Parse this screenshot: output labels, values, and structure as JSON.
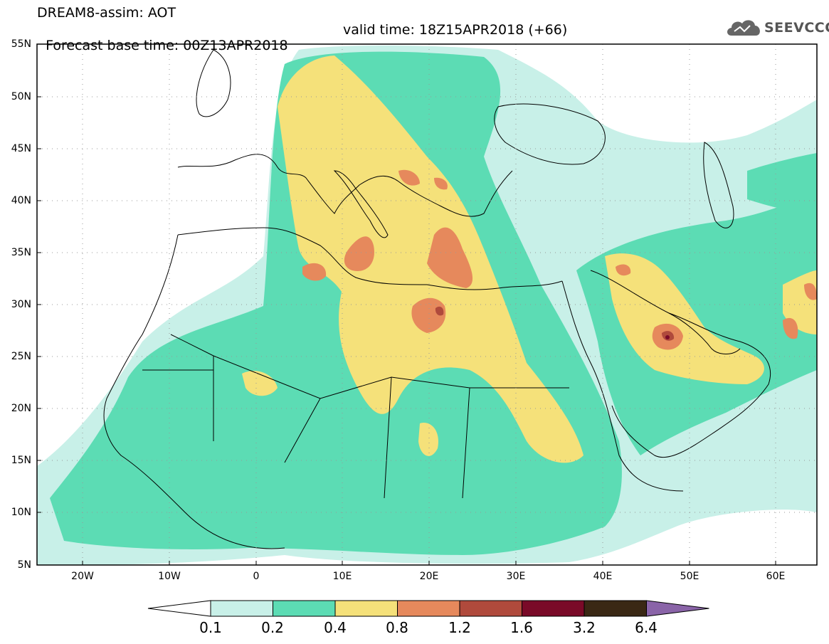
{
  "title": {
    "line1": "DREAM8-assim: AOT",
    "base_time": "Forecast base time: 00Z13APR2018",
    "valid_time": "valid time: 18Z15APR2018 (+66)"
  },
  "logo": {
    "text": "SEEVCCC",
    "icon": "cloud-icon"
  },
  "map": {
    "lat_labels": [
      "55N",
      "50N",
      "45N",
      "40N",
      "35N",
      "30N",
      "25N",
      "20N",
      "15N",
      "10N",
      "5N"
    ],
    "lon_labels": [
      "20W",
      "10W",
      "0",
      "10E",
      "20E",
      "30E",
      "40E",
      "50E",
      "60E"
    ],
    "grid": true,
    "colors": {
      "level_0_1": "#c8f0e8",
      "level_0_2": "#5cdcb4",
      "level_0_4": "#f5e17a",
      "level_0_8": "#e6895c",
      "level_1_2": "#b04a3c",
      "level_1_6": "#7a0a28",
      "level_3_2": "#3a2814",
      "level_6_4": "#8a64a8"
    }
  },
  "colorbar": {
    "labels": [
      "0.1",
      "0.2",
      "0.4",
      "0.8",
      "1.2",
      "1.6",
      "3.2",
      "6.4"
    ],
    "colors": [
      "#ffffff",
      "#c8f0e8",
      "#5cdcb4",
      "#f5e17a",
      "#e6895c",
      "#b04a3c",
      "#7a0a28",
      "#3a2814",
      "#8a64a8"
    ]
  }
}
